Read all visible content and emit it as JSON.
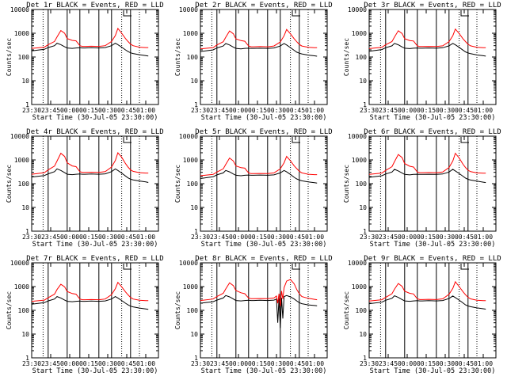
{
  "figure": {
    "time_ticks": [
      "23:30",
      "23:45",
      "00:00",
      "00:15",
      "00:30",
      "00:45",
      "01:00"
    ],
    "ytick_labels": [
      "1",
      "10",
      "100",
      "1000",
      "10000"
    ],
    "xlabel": "Start Time (30-Jul-05 23:30:00)",
    "ylabel": "Counts/sec",
    "colors": {
      "events": "#000000",
      "lld": "#ff0000",
      "axes": "#000000"
    }
  },
  "chart_data": [
    {
      "type": "line",
      "title": "Det 1r BLACK = Events, RED = LLD",
      "xlabel": "Start Time (30-Jul-05 23:30:00)",
      "ylabel": "Counts/sec",
      "ylim": [
        1,
        10000
      ],
      "yscale": "log",
      "xlim_min": [
        0,
        100
      ],
      "x_min": [
        0,
        10,
        13,
        18,
        20,
        23,
        26,
        28,
        32,
        35,
        38,
        40,
        42,
        47,
        53,
        58,
        63,
        66,
        68,
        71,
        74,
        76,
        78,
        80,
        85,
        90,
        92
      ],
      "series": [
        {
          "name": "BLACK = Events",
          "values": [
            180,
            210,
            250,
            300,
            380,
            330,
            270,
            240,
            230,
            240,
            245,
            240,
            240,
            245,
            240,
            250,
            300,
            380,
            330,
            260,
            200,
            170,
            150,
            140,
            125,
            115,
            110
          ]
        },
        {
          "name": "RED = LLD",
          "values": [
            230,
            260,
            330,
            450,
            700,
            1300,
            1000,
            600,
            500,
            480,
            300,
            280,
            280,
            285,
            280,
            300,
            450,
            800,
            1600,
            1000,
            600,
            450,
            350,
            300,
            260,
            250,
            250
          ]
        }
      ]
    },
    {
      "type": "line",
      "title": "Det 2r BLACK = Events, RED = LLD",
      "xlabel": "Start Time (30-Jul-05 23:30:00)",
      "ylabel": "Counts/sec",
      "ylim": [
        1,
        10000
      ],
      "yscale": "log",
      "xlim_min": [
        0,
        100
      ],
      "x_min": [
        0,
        10,
        13,
        18,
        20,
        23,
        26,
        28,
        32,
        35,
        38,
        40,
        42,
        47,
        53,
        58,
        63,
        66,
        68,
        71,
        74,
        76,
        78,
        80,
        85,
        90,
        92
      ],
      "series": [
        {
          "name": "BLACK = Events",
          "values": [
            170,
            200,
            240,
            290,
            370,
            320,
            260,
            230,
            220,
            230,
            235,
            230,
            230,
            235,
            230,
            240,
            290,
            370,
            320,
            250,
            190,
            160,
            145,
            135,
            120,
            112,
            108
          ]
        },
        {
          "name": "RED = LLD",
          "values": [
            220,
            250,
            320,
            440,
            680,
            1250,
            950,
            580,
            490,
            460,
            290,
            270,
            270,
            275,
            270,
            290,
            430,
            780,
            1450,
            950,
            580,
            440,
            340,
            290,
            255,
            245,
            245
          ]
        }
      ]
    },
    {
      "type": "line",
      "title": "Det 3r BLACK = Events, RED = LLD",
      "xlabel": "Start Time (30-Jul-05 23:30:00)",
      "ylabel": "Counts/sec",
      "ylim": [
        1,
        10000
      ],
      "yscale": "log",
      "xlim_min": [
        0,
        100
      ],
      "x_min": [
        0,
        10,
        13,
        18,
        20,
        23,
        26,
        28,
        32,
        35,
        38,
        40,
        42,
        47,
        53,
        58,
        63,
        66,
        68,
        71,
        74,
        76,
        78,
        80,
        85,
        90,
        92
      ],
      "series": [
        {
          "name": "BLACK = Events",
          "values": [
            175,
            205,
            245,
            295,
            375,
            325,
            265,
            235,
            225,
            235,
            240,
            235,
            235,
            240,
            235,
            245,
            295,
            375,
            325,
            255,
            195,
            165,
            148,
            138,
            122,
            113,
            109
          ]
        },
        {
          "name": "RED = LLD",
          "values": [
            225,
            255,
            325,
            445,
            690,
            1280,
            980,
            590,
            495,
            470,
            295,
            275,
            275,
            280,
            275,
            295,
            440,
            790,
            1500,
            980,
            590,
            445,
            345,
            295,
            258,
            248,
            248
          ]
        }
      ]
    },
    {
      "type": "line",
      "title": "Det 4r BLACK = Events, RED = LLD",
      "xlabel": "Start Time (30-Jul-05 23:30:00)",
      "ylabel": "Counts/sec",
      "ylim": [
        1,
        10000
      ],
      "yscale": "log",
      "xlim_min": [
        0,
        100
      ],
      "x_min": [
        0,
        10,
        13,
        18,
        20,
        23,
        26,
        28,
        32,
        35,
        38,
        40,
        42,
        47,
        53,
        58,
        63,
        66,
        68,
        71,
        74,
        76,
        78,
        80,
        85,
        90,
        92
      ],
      "series": [
        {
          "name": "BLACK = Events",
          "values": [
            190,
            220,
            260,
            320,
            420,
            360,
            290,
            250,
            240,
            250,
            255,
            250,
            250,
            255,
            250,
            260,
            320,
            420,
            360,
            280,
            210,
            175,
            155,
            145,
            130,
            118,
            112
          ]
        },
        {
          "name": "RED = LLD",
          "values": [
            250,
            290,
            380,
            550,
            900,
            1900,
            1400,
            750,
            560,
            520,
            320,
            300,
            300,
            305,
            300,
            320,
            500,
            950,
            2000,
            1300,
            700,
            500,
            380,
            330,
            290,
            280,
            280
          ]
        }
      ]
    },
    {
      "type": "line",
      "title": "Det 5r BLACK = Events, RED = LLD",
      "xlabel": "Start Time (30-Jul-05 23:30:00)",
      "ylabel": "Counts/sec",
      "ylim": [
        1,
        10000
      ],
      "yscale": "log",
      "xlim_min": [
        0,
        100
      ],
      "x_min": [
        0,
        10,
        13,
        18,
        20,
        23,
        26,
        28,
        32,
        35,
        38,
        40,
        42,
        47,
        53,
        58,
        63,
        66,
        68,
        71,
        74,
        76,
        78,
        80,
        85,
        90,
        92
      ],
      "series": [
        {
          "name": "BLACK = Events",
          "values": [
            165,
            195,
            235,
            285,
            360,
            315,
            255,
            225,
            215,
            225,
            230,
            225,
            225,
            230,
            225,
            235,
            285,
            360,
            315,
            245,
            185,
            158,
            142,
            132,
            118,
            110,
            106
          ]
        },
        {
          "name": "RED = LLD",
          "values": [
            215,
            245,
            310,
            420,
            650,
            1200,
            900,
            560,
            470,
            450,
            285,
            265,
            265,
            270,
            265,
            285,
            420,
            760,
            1400,
            920,
            560,
            430,
            335,
            285,
            250,
            240,
            240
          ]
        }
      ]
    },
    {
      "type": "line",
      "title": "Det 6r BLACK = Events, RED = LLD",
      "xlabel": "Start Time (30-Jul-05 23:30:00)",
      "ylabel": "Counts/sec",
      "ylim": [
        1,
        10000
      ],
      "yscale": "log",
      "xlim_min": [
        0,
        100
      ],
      "x_min": [
        0,
        10,
        13,
        18,
        20,
        23,
        26,
        28,
        32,
        35,
        38,
        40,
        42,
        47,
        53,
        58,
        63,
        66,
        68,
        71,
        74,
        76,
        78,
        80,
        85,
        90,
        92
      ],
      "series": [
        {
          "name": "BLACK = Events",
          "values": [
            185,
            215,
            255,
            310,
            400,
            345,
            280,
            245,
            235,
            245,
            250,
            245,
            245,
            250,
            245,
            255,
            310,
            400,
            345,
            270,
            205,
            172,
            152,
            142,
            128,
            116,
            111
          ]
        },
        {
          "name": "RED = LLD",
          "values": [
            245,
            280,
            360,
            520,
            850,
            1700,
            1250,
            700,
            540,
            500,
            310,
            290,
            290,
            295,
            290,
            310,
            480,
            900,
            1900,
            1200,
            660,
            480,
            370,
            320,
            285,
            275,
            275
          ]
        }
      ]
    },
    {
      "type": "line",
      "title": "Det 7r BLACK = Events, RED = LLD",
      "xlabel": "Start Time (30-Jul-05 23:30:00)",
      "ylabel": "Counts/sec",
      "ylim": [
        1,
        10000
      ],
      "yscale": "log",
      "xlim_min": [
        0,
        100
      ],
      "x_min": [
        0,
        10,
        13,
        18,
        20,
        23,
        26,
        28,
        32,
        35,
        38,
        40,
        42,
        47,
        53,
        58,
        63,
        66,
        68,
        71,
        74,
        76,
        78,
        80,
        85,
        90,
        92
      ],
      "series": [
        {
          "name": "BLACK = Events",
          "values": [
            180,
            210,
            250,
            300,
            380,
            330,
            270,
            240,
            230,
            240,
            245,
            240,
            240,
            245,
            240,
            250,
            300,
            380,
            330,
            260,
            200,
            170,
            150,
            140,
            125,
            115,
            110
          ]
        },
        {
          "name": "RED = LLD",
          "values": [
            240,
            270,
            340,
            480,
            750,
            1250,
            980,
            620,
            510,
            480,
            300,
            280,
            280,
            285,
            280,
            300,
            460,
            820,
            1500,
            980,
            600,
            450,
            350,
            300,
            265,
            255,
            255
          ]
        }
      ]
    },
    {
      "type": "line",
      "title": "Det 8r BLACK = Events, RED = LLD",
      "xlabel": "Start Time (30-Jul-05 23:30:00)",
      "ylabel": "Counts/sec",
      "ylim": [
        1,
        10000
      ],
      "yscale": "log",
      "xlim_min": [
        0,
        100
      ],
      "x_min": [
        0,
        10,
        13,
        18,
        20,
        23,
        26,
        28,
        32,
        35,
        38,
        40,
        42,
        47,
        53,
        58,
        60,
        61,
        62,
        63,
        64,
        65,
        66,
        68,
        71,
        74,
        76,
        78,
        80,
        85,
        90,
        92
      ],
      "series": [
        {
          "name": "BLACK = Events",
          "values": [
            200,
            230,
            270,
            330,
            420,
            370,
            300,
            260,
            250,
            260,
            265,
            260,
            260,
            265,
            260,
            270,
            300,
            30,
            320,
            18,
            340,
            45,
            380,
            420,
            370,
            300,
            250,
            210,
            190,
            170,
            160,
            155
          ]
        },
        {
          "name": "RED = LLD",
          "values": [
            260,
            300,
            380,
            520,
            800,
            1450,
            1100,
            680,
            550,
            500,
            330,
            310,
            310,
            315,
            310,
            330,
            400,
            200,
            500,
            150,
            650,
            300,
            900,
            1700,
            2000,
            1300,
            750,
            500,
            380,
            320,
            290,
            280
          ]
        }
      ]
    },
    {
      "type": "line",
      "title": "Det 9r BLACK = Events, RED = LLD",
      "xlabel": "Start Time (30-Jul-05 23:30:00)",
      "ylabel": "Counts/sec",
      "ylim": [
        1,
        10000
      ],
      "yscale": "log",
      "xlim_min": [
        0,
        100
      ],
      "x_min": [
        0,
        10,
        13,
        18,
        20,
        23,
        26,
        28,
        32,
        35,
        38,
        40,
        42,
        47,
        53,
        58,
        63,
        66,
        68,
        71,
        74,
        76,
        78,
        80,
        85,
        90,
        92
      ],
      "series": [
        {
          "name": "BLACK = Events",
          "values": [
            190,
            220,
            265,
            320,
            410,
            350,
            285,
            250,
            240,
            250,
            255,
            250,
            250,
            255,
            250,
            260,
            315,
            400,
            345,
            270,
            205,
            170,
            152,
            142,
            127,
            117,
            112
          ]
        },
        {
          "name": "RED = LLD",
          "values": [
            245,
            280,
            350,
            500,
            780,
            1350,
            1020,
            640,
            520,
            490,
            305,
            285,
            285,
            290,
            285,
            305,
            470,
            840,
            1600,
            1000,
            610,
            455,
            355,
            305,
            268,
            258,
            258
          ]
        }
      ]
    }
  ]
}
